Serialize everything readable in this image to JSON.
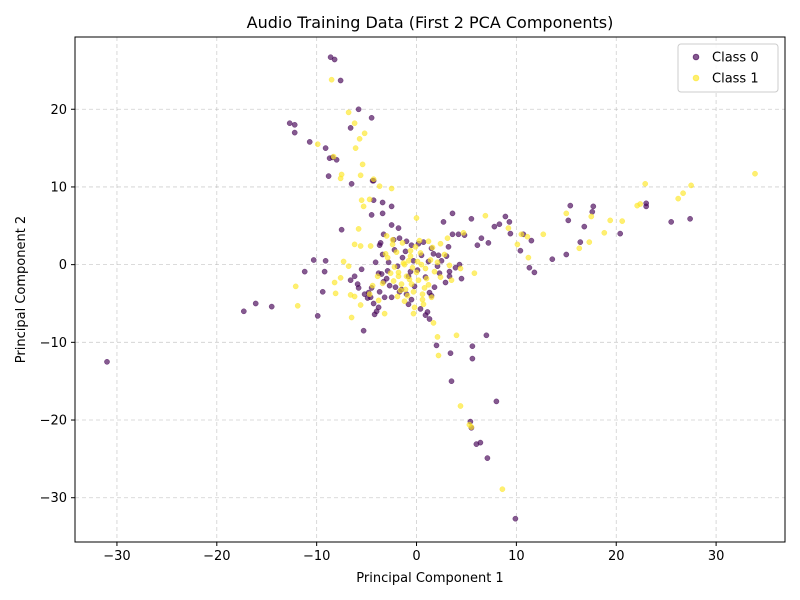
{
  "chart_data": {
    "type": "scatter",
    "title": "Audio Training Data (First 2 PCA Components)",
    "xlabel": "Principal Component 1",
    "ylabel": "Principal Component 2",
    "xlim": [
      -34.2,
      36.9
    ],
    "ylim": [
      -35.7,
      29.3
    ],
    "xticks": [
      -30,
      -20,
      -10,
      0,
      10,
      20,
      30
    ],
    "yticks": [
      -30,
      -20,
      -10,
      0,
      10,
      20
    ],
    "grid": true,
    "legend_position": "top-right",
    "series": [
      {
        "name": "Class 0",
        "color": "#440154",
        "points": [
          [
            -31,
            -12.5
          ],
          [
            -17.3,
            -6
          ],
          [
            -16.1,
            -5
          ],
          [
            -14.5,
            -5.4
          ],
          [
            -12.7,
            18.2
          ],
          [
            -12.2,
            18
          ],
          [
            -12.2,
            17
          ],
          [
            -10.7,
            15.8
          ],
          [
            -9.1,
            15
          ],
          [
            -8.7,
            13.7
          ],
          [
            -8.4,
            13.8
          ],
          [
            -8,
            13.5
          ],
          [
            -8.8,
            11.4
          ],
          [
            -8.6,
            26.7
          ],
          [
            -8.2,
            26.4
          ],
          [
            -7.6,
            23.7
          ],
          [
            -5.8,
            20
          ],
          [
            -4.5,
            18.9
          ],
          [
            -6.6,
            17.6
          ],
          [
            -6.5,
            10.4
          ],
          [
            -4.4,
            10.8
          ],
          [
            -4.3,
            10.8
          ],
          [
            -4.3,
            8.3
          ],
          [
            -3.4,
            8
          ],
          [
            -2.5,
            7.5
          ],
          [
            -4.5,
            6.4
          ],
          [
            -3.4,
            6.6
          ],
          [
            -2.5,
            5.1
          ],
          [
            -1.8,
            4.7
          ],
          [
            -7.5,
            4.5
          ],
          [
            -10.3,
            0.6
          ],
          [
            -9.1,
            0.5
          ],
          [
            -9.2,
            -0.9
          ],
          [
            -11.2,
            -0.9
          ],
          [
            -9.4,
            -3.5
          ],
          [
            -9.9,
            -6.6
          ],
          [
            -5.3,
            -8.5
          ],
          [
            -6.6,
            -2
          ],
          [
            -5.8,
            -3
          ],
          [
            -5.2,
            -3.8
          ],
          [
            -4.9,
            -4.3
          ],
          [
            -4.3,
            -5
          ],
          [
            -3.8,
            -5.5
          ],
          [
            -4.5,
            -3
          ],
          [
            -3.7,
            -3.5
          ],
          [
            -3.2,
            -4.2
          ],
          [
            -4,
            -6
          ],
          [
            -4.2,
            -6.4
          ],
          [
            -2.5,
            -4.2
          ],
          [
            -3,
            -1.8
          ],
          [
            -3.5,
            -1.2
          ],
          [
            -2.9,
            -0.8
          ],
          [
            -4.1,
            0.3
          ],
          [
            -3.4,
            1.3
          ],
          [
            -3.7,
            2.5
          ],
          [
            -3.6,
            2.8
          ],
          [
            -3.3,
            3.9
          ],
          [
            -2.3,
            3.2
          ],
          [
            -1.7,
            3.4
          ],
          [
            -1,
            3
          ],
          [
            -0.5,
            2.5
          ],
          [
            0.2,
            2.7
          ],
          [
            0.7,
            2.9
          ],
          [
            1.5,
            2.1
          ],
          [
            1.7,
            1.4
          ],
          [
            2.2,
            1.2
          ],
          [
            2.5,
            0.5
          ],
          [
            3,
            1.1
          ],
          [
            3.2,
            2.3
          ],
          [
            3.6,
            3.9
          ],
          [
            2.7,
            5.5
          ],
          [
            3.6,
            6.6
          ],
          [
            5.5,
            5.9
          ],
          [
            6.5,
            3.4
          ],
          [
            6.1,
            2.5
          ],
          [
            7.2,
            2.8
          ],
          [
            7.8,
            4.9
          ],
          [
            8.3,
            5.2
          ],
          [
            8.9,
            6.2
          ],
          [
            9.4,
            4
          ],
          [
            9.3,
            5.5
          ],
          [
            10.4,
            1.8
          ],
          [
            10.7,
            3.9
          ],
          [
            11.3,
            -0.4
          ],
          [
            11.8,
            -1
          ],
          [
            11.5,
            3.1
          ],
          [
            13.6,
            0.7
          ],
          [
            15,
            1.3
          ],
          [
            15.2,
            5.7
          ],
          [
            15.4,
            7.6
          ],
          [
            16.4,
            2.9
          ],
          [
            16.8,
            4.9
          ],
          [
            17.6,
            6.8
          ],
          [
            17.7,
            7.5
          ],
          [
            20.4,
            4
          ],
          [
            23,
            7.9
          ],
          [
            23,
            7.5
          ],
          [
            25.5,
            5.5
          ],
          [
            27.4,
            5.9
          ],
          [
            4.5,
            -1.8
          ],
          [
            4.3,
            0
          ],
          [
            3.9,
            -0.4
          ],
          [
            3.3,
            -1.5
          ],
          [
            2.9,
            -2.3
          ],
          [
            1.8,
            -2.9
          ],
          [
            1.5,
            -4
          ],
          [
            1.1,
            -6.1
          ],
          [
            0.9,
            -6.5
          ],
          [
            1.3,
            -7
          ],
          [
            2,
            -10.4
          ],
          [
            3.4,
            -11.4
          ],
          [
            5.6,
            -10.5
          ],
          [
            5.6,
            -12.1
          ],
          [
            7,
            -9.1
          ],
          [
            3.5,
            -15
          ],
          [
            5.4,
            -20.2
          ],
          [
            5.5,
            -21
          ],
          [
            6,
            -23.1
          ],
          [
            6.4,
            -22.9
          ],
          [
            7.1,
            -24.9
          ],
          [
            8,
            -17.6
          ],
          [
            9.9,
            -32.7
          ],
          [
            -0.5,
            -4.5
          ],
          [
            -1,
            -3.8
          ],
          [
            -1.5,
            -3.2
          ],
          [
            -0.8,
            -1.5
          ],
          [
            -0.3,
            0.5
          ],
          [
            0.5,
            1.2
          ],
          [
            -0.2,
            -2.8
          ],
          [
            0.9,
            -1.6
          ],
          [
            -1.9,
            -0.2
          ],
          [
            -2.2,
            1.9
          ],
          [
            -1.1,
            1.7
          ],
          [
            0.1,
            -0.7
          ],
          [
            -0.6,
            -0.9
          ],
          [
            1.2,
            0.4
          ],
          [
            -1.4,
            0.9
          ],
          [
            -2.7,
            -2.7
          ],
          [
            -5.5,
            -0.6
          ],
          [
            -6.2,
            -1.5
          ],
          [
            -5.9,
            -2.5
          ],
          [
            -3.3,
            -2.2
          ],
          [
            1.3,
            -3.6
          ],
          [
            2.3,
            -1.1
          ],
          [
            3.3,
            -0.9
          ],
          [
            4.2,
            3.9
          ],
          [
            4.8,
            3.8
          ],
          [
            -1.7,
            -3.5
          ],
          [
            -0.8,
            -5.1
          ],
          [
            0.4,
            -5.7
          ],
          [
            -4.6,
            -4.2
          ],
          [
            -4.8,
            -3.6
          ],
          [
            -2.1,
            -2.9
          ],
          [
            2.1,
            -0.2
          ],
          [
            -3.8,
            -1.1
          ],
          [
            -2.8,
            0.3
          ]
        ]
      },
      {
        "name": "Class 1",
        "color": "#fde725",
        "points": [
          [
            -12.1,
            -2.8
          ],
          [
            -11.9,
            -5.3
          ],
          [
            -9.9,
            15.5
          ],
          [
            -8.5,
            23.8
          ],
          [
            -8.3,
            13.9
          ],
          [
            -7.6,
            11.1
          ],
          [
            -7.5,
            11.6
          ],
          [
            -6.8,
            19.6
          ],
          [
            -6.2,
            18.2
          ],
          [
            -6.1,
            15
          ],
          [
            -5.7,
            16.2
          ],
          [
            -5.2,
            16.9
          ],
          [
            -5.4,
            12.9
          ],
          [
            -5.6,
            11.5
          ],
          [
            -4.3,
            11
          ],
          [
            -3.7,
            10.1
          ],
          [
            -2.5,
            9.8
          ],
          [
            -4.7,
            8.4
          ],
          [
            -5.5,
            8.3
          ],
          [
            -5.3,
            7.5
          ],
          [
            -5.8,
            4.6
          ],
          [
            -6.2,
            2.6
          ],
          [
            -5.6,
            2.4
          ],
          [
            -4.6,
            2.4
          ],
          [
            -3,
            3.7
          ],
          [
            -2.4,
            3.2
          ],
          [
            -1.4,
            2.8
          ],
          [
            0,
            6
          ],
          [
            -7.3,
            0.4
          ],
          [
            -6.8,
            -0.2
          ],
          [
            -7.6,
            -1.7
          ],
          [
            -8.2,
            -2.3
          ],
          [
            -8.1,
            -3.7
          ],
          [
            -6.6,
            -3.9
          ],
          [
            -6.2,
            -4.1
          ],
          [
            -6.5,
            -6.8
          ],
          [
            -5.6,
            -5.2
          ],
          [
            -4.7,
            -3.8
          ],
          [
            -3.8,
            -4.6
          ],
          [
            -3.2,
            -6.3
          ],
          [
            -2.3,
            -2.1
          ],
          [
            -1.8,
            -1
          ],
          [
            -1.2,
            0
          ],
          [
            -0.6,
            1.1
          ],
          [
            0.3,
            3.1
          ],
          [
            1.2,
            3
          ],
          [
            2.4,
            2.7
          ],
          [
            3.1,
            3.4
          ],
          [
            4.7,
            4.1
          ],
          [
            6.9,
            6.3
          ],
          [
            9.2,
            4.7
          ],
          [
            10.1,
            2.6
          ],
          [
            10.5,
            3.9
          ],
          [
            11.1,
            3.6
          ],
          [
            11.2,
            0.9
          ],
          [
            12.7,
            3.9
          ],
          [
            15,
            6.6
          ],
          [
            16.3,
            2.1
          ],
          [
            17.3,
            2.9
          ],
          [
            17.5,
            6.2
          ],
          [
            18.8,
            4.1
          ],
          [
            19.4,
            5.7
          ],
          [
            20.6,
            5.6
          ],
          [
            22.1,
            7.6
          ],
          [
            22.4,
            7.8
          ],
          [
            22.9,
            10.4
          ],
          [
            26.2,
            8.5
          ],
          [
            26.7,
            9.2
          ],
          [
            27.5,
            10.2
          ],
          [
            33.9,
            11.7
          ],
          [
            5.8,
            -1.1
          ],
          [
            4.4,
            -0.5
          ],
          [
            3.5,
            -2
          ],
          [
            2.4,
            -1.6
          ],
          [
            1.7,
            -7.5
          ],
          [
            2.1,
            -9.3
          ],
          [
            2.2,
            -11.7
          ],
          [
            4,
            -9.1
          ],
          [
            4.4,
            -18.2
          ],
          [
            5.3,
            -20.6
          ],
          [
            5.5,
            -20.9
          ],
          [
            8.6,
            -28.9
          ],
          [
            -1,
            -1.5
          ],
          [
            -0.5,
            -2.5
          ],
          [
            0,
            -1
          ],
          [
            0.5,
            0
          ],
          [
            -0.8,
            0.5
          ],
          [
            0.2,
            -2
          ],
          [
            -0.3,
            -3.5
          ],
          [
            0.8,
            -3
          ],
          [
            -1.5,
            -2.5
          ],
          [
            -0.9,
            -4
          ],
          [
            0.6,
            -4.5
          ],
          [
            -0.2,
            -5.5
          ],
          [
            1,
            -1.8
          ],
          [
            -1.3,
            0.2
          ],
          [
            -1.8,
            -1.5
          ],
          [
            0.4,
            1.5
          ],
          [
            -0.6,
            1.8
          ],
          [
            1.4,
            0.6
          ],
          [
            -2.2,
            -0.3
          ],
          [
            -1.1,
            -3.2
          ],
          [
            0.9,
            -0.5
          ],
          [
            -0.4,
            -0.4
          ],
          [
            0.1,
            0.4
          ],
          [
            -0.7,
            -1.9
          ],
          [
            1.2,
            -2.6
          ],
          [
            -1.6,
            -3.3
          ],
          [
            -2.6,
            -1.1
          ],
          [
            -0.1,
            2.3
          ],
          [
            1.8,
            -0.9
          ],
          [
            2.1,
            0.3
          ],
          [
            -2.9,
            0.9
          ],
          [
            -2,
            1.6
          ],
          [
            0.6,
            -3.8
          ],
          [
            -1.2,
            -4.7
          ],
          [
            -0.3,
            -6.3
          ],
          [
            0.7,
            -5.1
          ],
          [
            1.5,
            -4.2
          ],
          [
            3.3,
            -0.1
          ],
          [
            -3.4,
            -2.4
          ],
          [
            -3.9,
            -1.5
          ],
          [
            -4.4,
            -2.7
          ],
          [
            -3.1,
            1.4
          ],
          [
            2.8,
            1.3
          ],
          [
            -2.4,
            2.6
          ],
          [
            1.6,
            2.2
          ],
          [
            -1.9,
            -4.1
          ]
        ]
      }
    ]
  }
}
